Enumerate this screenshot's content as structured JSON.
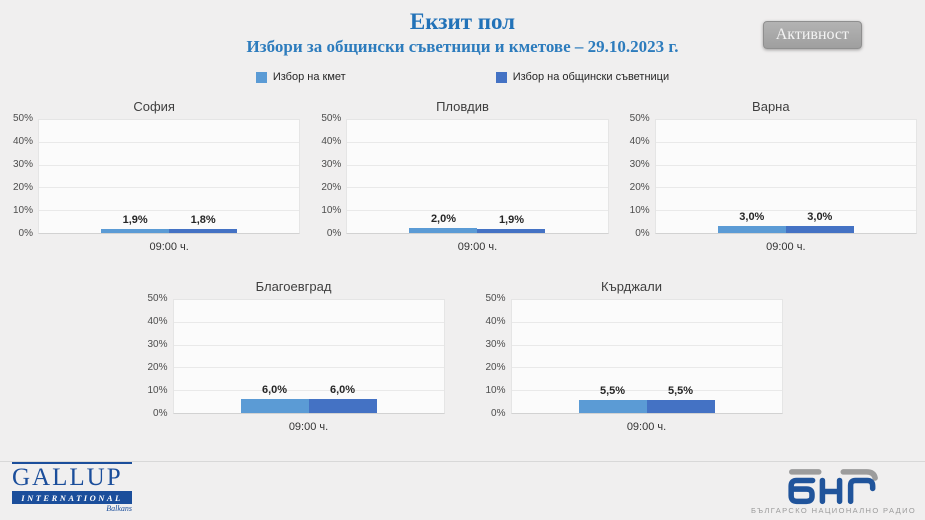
{
  "header": {
    "title": "Екзит пол",
    "subtitle": "Избори за общински съветници и кметове – 29.10.2023 г.",
    "button_label": "Активност"
  },
  "legend": {
    "items": [
      {
        "label": "Избор на кмет",
        "color": "#5B9BD5"
      },
      {
        "label": "Избор на общински съветници",
        "color": "#4472C4"
      }
    ]
  },
  "chart_data": [
    {
      "type": "bar",
      "row": 1,
      "title": "София",
      "categories": [
        "09:00 ч."
      ],
      "x_label": "09:00 ч.",
      "ylim": [
        0,
        50
      ],
      "yticks": [
        "0%",
        "10%",
        "20%",
        "30%",
        "40%",
        "50%"
      ],
      "grid": true,
      "legend_position": "top",
      "series": [
        {
          "name": "Избор на кмет",
          "value": 1.9,
          "label": "1,9%",
          "color": "#5B9BD5"
        },
        {
          "name": "Избор на общински съветници",
          "value": 1.8,
          "label": "1,8%",
          "color": "#4472C4"
        }
      ]
    },
    {
      "type": "bar",
      "row": 1,
      "title": "Пловдив",
      "categories": [
        "09:00 ч."
      ],
      "x_label": "09:00 ч.",
      "ylim": [
        0,
        50
      ],
      "yticks": [
        "0%",
        "10%",
        "20%",
        "30%",
        "40%",
        "50%"
      ],
      "grid": true,
      "legend_position": "top",
      "series": [
        {
          "name": "Избор на кмет",
          "value": 2.0,
          "label": "2,0%",
          "color": "#5B9BD5"
        },
        {
          "name": "Избор на общински съветници",
          "value": 1.9,
          "label": "1,9%",
          "color": "#4472C4"
        }
      ]
    },
    {
      "type": "bar",
      "row": 1,
      "title": "Варна",
      "categories": [
        "09:00 ч."
      ],
      "x_label": "09:00 ч.",
      "ylim": [
        0,
        50
      ],
      "yticks": [
        "0%",
        "10%",
        "20%",
        "30%",
        "40%",
        "50%"
      ],
      "grid": true,
      "legend_position": "top",
      "series": [
        {
          "name": "Избор на кмет",
          "value": 3.0,
          "label": "3,0%",
          "color": "#5B9BD5"
        },
        {
          "name": "Избор на общински съветници",
          "value": 3.0,
          "label": "3,0%",
          "color": "#4472C4"
        }
      ]
    },
    {
      "type": "bar",
      "row": 2,
      "title": "Благоевград",
      "categories": [
        "09:00 ч."
      ],
      "x_label": "09:00 ч.",
      "ylim": [
        0,
        50
      ],
      "yticks": [
        "0%",
        "10%",
        "20%",
        "30%",
        "40%",
        "50%"
      ],
      "grid": true,
      "legend_position": "top",
      "series": [
        {
          "name": "Избор на кмет",
          "value": 6.0,
          "label": "6,0%",
          "color": "#5B9BD5"
        },
        {
          "name": "Избор на общински съветници",
          "value": 6.0,
          "label": "6,0%",
          "color": "#4472C4"
        }
      ]
    },
    {
      "type": "bar",
      "row": 2,
      "title": "Кърджали",
      "categories": [
        "09:00 ч."
      ],
      "x_label": "09:00 ч.",
      "ylim": [
        0,
        50
      ],
      "yticks": [
        "0%",
        "10%",
        "20%",
        "30%",
        "40%",
        "50%"
      ],
      "grid": true,
      "legend_position": "top",
      "series": [
        {
          "name": "Избор на кмет",
          "value": 5.5,
          "label": "5,5%",
          "color": "#5B9BD5"
        },
        {
          "name": "Избор на общински съветници",
          "value": 5.5,
          "label": "5,5%",
          "color": "#4472C4"
        }
      ]
    }
  ],
  "footer": {
    "gallup": {
      "name": "GALLUP",
      "sub": "INTERNATIONAL",
      "region": "Balkans"
    },
    "bnr": {
      "caption": "БЪЛГАРСКО НАЦИОНАЛНО РАДИО"
    }
  },
  "colors": {
    "accent_blue": "#2272B8",
    "bar_light": "#5B9BD5",
    "bar_dark": "#4472C4",
    "button_gray": "#A6A6A6",
    "background": "#F0EFEF"
  }
}
